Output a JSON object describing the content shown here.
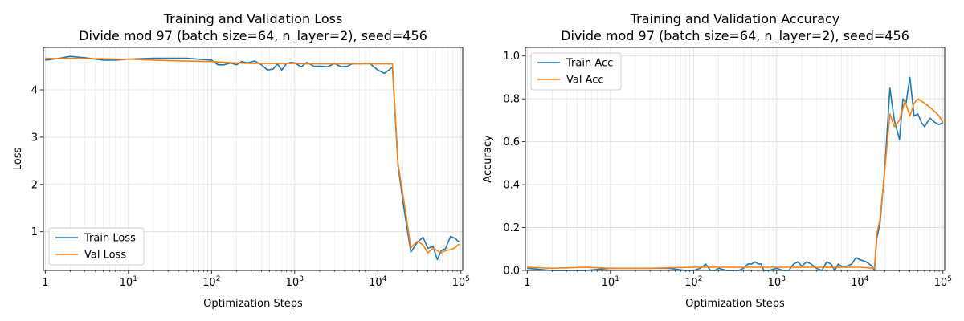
{
  "chart_data": [
    {
      "type": "line",
      "title": "Training and Validation Loss",
      "subtitle": "Divide mod 97 (batch size=64, n_layer=2), seed=456",
      "xlabel": "Optimization Steps",
      "ylabel": "Loss",
      "xscale": "log",
      "xlim": [
        0.95,
        105000
      ],
      "ylim": [
        0.18,
        4.9
      ],
      "xticks": [
        {
          "value": 1,
          "base": "1",
          "exp": ""
        },
        {
          "value": 10,
          "base": "10",
          "exp": "1"
        },
        {
          "value": 100,
          "base": "10",
          "exp": "2"
        },
        {
          "value": 1000,
          "base": "10",
          "exp": "3"
        },
        {
          "value": 10000,
          "base": "10",
          "exp": "4"
        },
        {
          "value": 100000,
          "base": "10",
          "exp": "5"
        }
      ],
      "yticks": [
        1,
        2,
        3,
        4
      ],
      "grid": true,
      "legend_position": "lower left",
      "series": [
        {
          "name": "Train Loss",
          "color": "#1f77b4",
          "x": [
            1,
            1.5,
            2,
            3,
            5,
            7,
            10,
            20,
            50,
            100,
            120,
            140,
            170,
            200,
            230,
            270,
            330,
            400,
            470,
            550,
            620,
            700,
            800,
            900,
            1000,
            1200,
            1400,
            1700,
            2100,
            2500,
            3000,
            3600,
            4300,
            5000,
            6000,
            7000,
            8000,
            10000,
            12000,
            15000,
            17500,
            21000,
            25000,
            30000,
            35000,
            40000,
            46000,
            52000,
            58000,
            65000,
            75000,
            85000,
            95000
          ],
          "y": [
            4.63,
            4.67,
            4.71,
            4.68,
            4.63,
            4.63,
            4.65,
            4.67,
            4.67,
            4.63,
            4.53,
            4.53,
            4.57,
            4.53,
            4.6,
            4.57,
            4.61,
            4.53,
            4.42,
            4.44,
            4.55,
            4.42,
            4.56,
            4.58,
            4.57,
            4.49,
            4.58,
            4.5,
            4.5,
            4.49,
            4.56,
            4.49,
            4.5,
            4.56,
            4.55,
            4.56,
            4.56,
            4.42,
            4.35,
            4.48,
            2.4,
            1.4,
            0.57,
            0.78,
            0.88,
            0.65,
            0.69,
            0.41,
            0.6,
            0.64,
            0.9,
            0.86,
            0.78
          ]
        },
        {
          "name": "Val Loss",
          "color": "#ff7f0e",
          "x": [
            1,
            1.5,
            2,
            3,
            5,
            7,
            10,
            20,
            50,
            100,
            150,
            200,
            300,
            500,
            800,
            1000,
            1500,
            2000,
            3000,
            5000,
            8000,
            10000,
            15000,
            17500,
            21000,
            25000,
            30000,
            35000,
            40000,
            46000,
            52000,
            58000,
            65000,
            75000,
            85000,
            95000
          ],
          "y": [
            4.67,
            4.66,
            4.67,
            4.66,
            4.66,
            4.65,
            4.65,
            4.63,
            4.61,
            4.6,
            4.58,
            4.57,
            4.56,
            4.56,
            4.56,
            4.56,
            4.55,
            4.55,
            4.55,
            4.55,
            4.55,
            4.55,
            4.55,
            2.45,
            1.55,
            0.66,
            0.8,
            0.72,
            0.55,
            0.65,
            0.6,
            0.55,
            0.6,
            0.62,
            0.66,
            0.74
          ]
        }
      ]
    },
    {
      "type": "line",
      "title": "Training and Validation Accuracy",
      "subtitle": "Divide mod 97 (batch size=64, n_layer=2), seed=456",
      "xlabel": "Optimization Steps",
      "ylabel": "Accuracy",
      "xscale": "log",
      "xlim": [
        0.95,
        105000
      ],
      "ylim": [
        0.0,
        1.04
      ],
      "xticks": [
        {
          "value": 1,
          "base": "1",
          "exp": ""
        },
        {
          "value": 10,
          "base": "10",
          "exp": "1"
        },
        {
          "value": 100,
          "base": "10",
          "exp": "2"
        },
        {
          "value": 1000,
          "base": "10",
          "exp": "3"
        },
        {
          "value": 10000,
          "base": "10",
          "exp": "4"
        },
        {
          "value": 100000,
          "base": "10",
          "exp": "5"
        }
      ],
      "yticks": [
        "0.0",
        "0.2",
        "0.4",
        "0.6",
        "0.8",
        "1.0"
      ],
      "grid": true,
      "legend_position": "upper left",
      "series": [
        {
          "name": "Train Acc",
          "color": "#1f77b4",
          "x": [
            1,
            2,
            3,
            5,
            10,
            20,
            50,
            80,
            100,
            120,
            140,
            160,
            180,
            200,
            250,
            300,
            350,
            400,
            450,
            500,
            550,
            600,
            650,
            700,
            800,
            1000,
            1200,
            1400,
            1600,
            1800,
            2000,
            2300,
            2600,
            3000,
            3500,
            4000,
            4500,
            5000,
            5500,
            6000,
            7000,
            8000,
            9000,
            10000,
            12000,
            14000,
            15000,
            16000,
            17500,
            20000,
            23000,
            26000,
            30000,
            33000,
            36000,
            40000,
            45000,
            50000,
            55000,
            60000,
            70000,
            80000,
            90000,
            100000
          ],
          "y": [
            0.01,
            0.0,
            0.0,
            0.0,
            0.01,
            0.01,
            0.01,
            0.0,
            0.0,
            0.01,
            0.03,
            0.0,
            0.0,
            0.01,
            0.0,
            0.0,
            0.0,
            0.01,
            0.03,
            0.03,
            0.04,
            0.03,
            0.03,
            0.0,
            0.0,
            0.01,
            0.0,
            0.0,
            0.03,
            0.04,
            0.02,
            0.04,
            0.03,
            0.01,
            0.0,
            0.04,
            0.03,
            0.0,
            0.03,
            0.02,
            0.02,
            0.03,
            0.06,
            0.05,
            0.04,
            0.02,
            0.0,
            0.15,
            0.22,
            0.48,
            0.85,
            0.7,
            0.61,
            0.8,
            0.78,
            0.9,
            0.72,
            0.73,
            0.69,
            0.67,
            0.71,
            0.69,
            0.68,
            0.69
          ]
        },
        {
          "name": "Val Acc",
          "color": "#ff7f0e",
          "x": [
            1,
            2,
            5,
            10,
            30,
            100,
            300,
            1000,
            3000,
            10000,
            15000,
            16000,
            17500,
            20000,
            23000,
            26000,
            30000,
            35000,
            40000,
            45000,
            50000,
            60000,
            70000,
            80000,
            90000,
            100000
          ],
          "y": [
            0.015,
            0.01,
            0.015,
            0.01,
            0.01,
            0.015,
            0.015,
            0.015,
            0.015,
            0.015,
            0.01,
            0.17,
            0.24,
            0.47,
            0.73,
            0.67,
            0.7,
            0.79,
            0.72,
            0.78,
            0.8,
            0.78,
            0.76,
            0.74,
            0.72,
            0.69
          ]
        }
      ]
    }
  ]
}
